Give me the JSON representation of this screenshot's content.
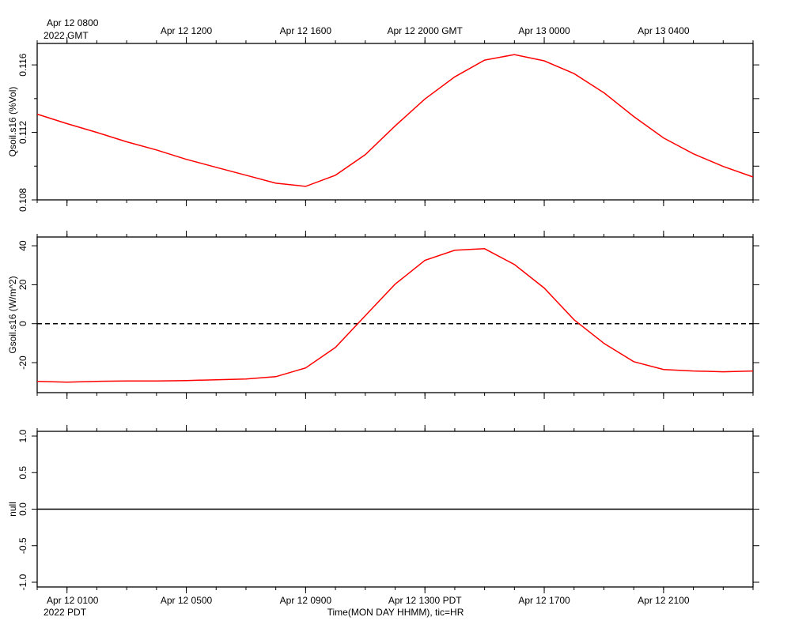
{
  "chart_data": [
    {
      "type": "line",
      "ylabel": "Qsoil.s16 (%Vol)",
      "x2_title": "2022 GMT",
      "xlim": [
        "Apr 12 0000",
        "Apr 13 0000"
      ],
      "x2ticks": [
        {
          "value": "Apr 12 0100",
          "label": "Apr 12 0800"
        },
        {
          "value": "Apr 12 0500",
          "label": "Apr 12 1200"
        },
        {
          "value": "Apr 12 0900",
          "label": "Apr 12 1600"
        },
        {
          "value": "Apr 12 1300",
          "label": "Apr 12 2000 GMT"
        },
        {
          "value": "Apr 12 1700",
          "label": "Apr 13 0000"
        },
        {
          "value": "Apr 12 2100",
          "label": "Apr 13 0400"
        }
      ],
      "ylim": [
        0.108,
        0.11727
      ],
      "yticks": [
        0.108,
        0.112,
        0.116
      ],
      "yminorticks": [
        0.11,
        0.114
      ],
      "x": [
        "Apr 12 0000",
        "Apr 12 0100",
        "Apr 12 0200",
        "Apr 12 0300",
        "Apr 12 0400",
        "Apr 12 0500",
        "Apr 12 0600",
        "Apr 12 0700",
        "Apr 12 0800",
        "Apr 12 0900",
        "Apr 12 1000",
        "Apr 12 1100",
        "Apr 12 1200",
        "Apr 12 1300",
        "Apr 12 1400",
        "Apr 12 1500",
        "Apr 12 1600",
        "Apr 12 1700",
        "Apr 12 1800",
        "Apr 12 1900",
        "Apr 12 2000",
        "Apr 12 2100",
        "Apr 12 2200",
        "Apr 12 2300",
        "Apr 13 0000"
      ],
      "series": [
        {
          "color": "#ff0000",
          "values": [
            0.11308,
            0.11252,
            0.112,
            0.11144,
            0.11096,
            0.1104,
            0.10993,
            0.10946,
            0.10899,
            0.1088,
            0.10946,
            0.11068,
            0.11238,
            0.11398,
            0.11529,
            0.11628,
            0.11661,
            0.11624,
            0.11548,
            0.11435,
            0.11294,
            0.11167,
            0.11073,
            0.10998,
            0.10936
          ]
        }
      ]
    },
    {
      "type": "line",
      "ylabel": "Gsoil.s16 (W/m^2)",
      "xlim": [
        "Apr 12 0000",
        "Apr 13 0000"
      ],
      "ylim": [
        -35.4,
        44.5
      ],
      "yticks": [
        -20,
        0,
        20,
        40
      ],
      "hline": 0,
      "hline_style": "dashed",
      "x": [
        "Apr 12 0000",
        "Apr 12 0100",
        "Apr 12 0200",
        "Apr 12 0300",
        "Apr 12 0400",
        "Apr 12 0500",
        "Apr 12 0600",
        "Apr 12 0700",
        "Apr 12 0800",
        "Apr 12 0900",
        "Apr 12 1000",
        "Apr 12 1100",
        "Apr 12 1200",
        "Apr 12 1300",
        "Apr 12 1400",
        "Apr 12 1500",
        "Apr 12 1600",
        "Apr 12 1700",
        "Apr 12 1800",
        "Apr 12 1900",
        "Apr 12 2000",
        "Apr 12 2100",
        "Apr 12 2200",
        "Apr 12 2300",
        "Apr 13 0000"
      ],
      "series": [
        {
          "color": "#ff0000",
          "values": [
            -29.6,
            -30.0,
            -29.6,
            -29.4,
            -29.4,
            -29.2,
            -28.8,
            -28.4,
            -27.2,
            -22.7,
            -12.2,
            4.1,
            20.3,
            32.5,
            37.7,
            38.5,
            30.4,
            18.3,
            2.0,
            -10.1,
            -19.5,
            -23.5,
            -24.3,
            -24.7,
            -24.3
          ]
        }
      ]
    },
    {
      "type": "line",
      "ylabel": "null",
      "x_title": "2022 PDT",
      "xlabel": "Time(MON DAY HHMM), tic=HR",
      "xlim": [
        "Apr 12 0000",
        "Apr 13 0000"
      ],
      "xticks": [
        {
          "value": "Apr 12 0100",
          "label": "Apr 12 0100"
        },
        {
          "value": "Apr 12 0500",
          "label": "Apr 12 0500"
        },
        {
          "value": "Apr 12 0900",
          "label": "Apr 12 0900"
        },
        {
          "value": "Apr 12 1300",
          "label": "Apr 12 1300 PDT"
        },
        {
          "value": "Apr 12 1700",
          "label": "Apr 12 1700"
        },
        {
          "value": "Apr 12 2100",
          "label": "Apr 12 2100"
        }
      ],
      "ylim": [
        -1.065,
        1.065
      ],
      "yticks": [
        {
          "value": -1,
          "label": "-1.0"
        },
        {
          "value": -0.5,
          "label": "-0.5"
        },
        {
          "value": 0,
          "label": "0.0"
        },
        {
          "value": 0.5,
          "label": "0.5"
        },
        {
          "value": 1,
          "label": "1.0"
        }
      ],
      "hline": 0,
      "hline_style": "solid"
    }
  ]
}
